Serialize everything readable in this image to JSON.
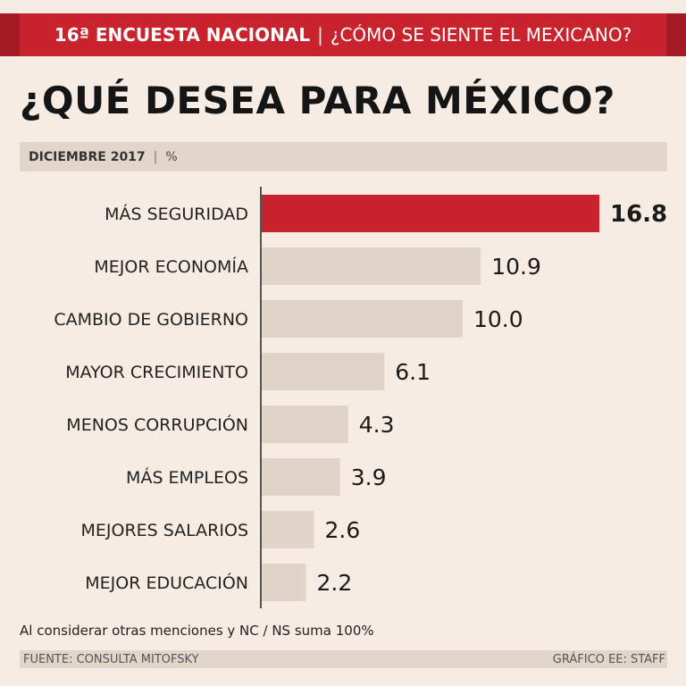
{
  "header": {
    "survey": "16ª ENCUESTA NACIONAL",
    "separator": "|",
    "question": "¿CÓMO SE SIENTE EL MEXICANO?"
  },
  "title": "¿QUÉ DESEA PARA MÉXICO?",
  "subheader": {
    "date": "DICIEMBRE 2017",
    "separator": "|",
    "unit": "%"
  },
  "note": "Al considerar otras menciones y NC / NS suma 100%",
  "footer": {
    "source": "FUENTE: CONSULTA MITOFSKY",
    "credit": "GRÁFICO EE: STAFF"
  },
  "colors": {
    "highlight": "#c9232d",
    "bar": "#e0d3c8",
    "axis": "#222222"
  },
  "chart_data": {
    "type": "bar",
    "orientation": "horizontal",
    "title": "¿QUÉ DESEA PARA MÉXICO?",
    "xlabel": "%",
    "ylabel": "",
    "xlim": [
      0,
      16.8
    ],
    "categories": [
      "MÁS SEGURIDAD",
      "MEJOR ECONOMÍA",
      "CAMBIO DE GOBIERNO",
      "MAYOR CRECIMIENTO",
      "MENOS CORRUPCIÓN",
      "MÁS EMPLEOS",
      "MEJORES SALARIOS",
      "MEJOR EDUCACIÓN"
    ],
    "values": [
      16.8,
      10.9,
      10.0,
      6.1,
      4.3,
      3.9,
      2.6,
      2.2
    ],
    "labels": [
      "16.8",
      "10.9",
      "10.0",
      "6.1",
      "4.3",
      "3.9",
      "2.6",
      "2.2"
    ],
    "highlight_index": 0
  }
}
